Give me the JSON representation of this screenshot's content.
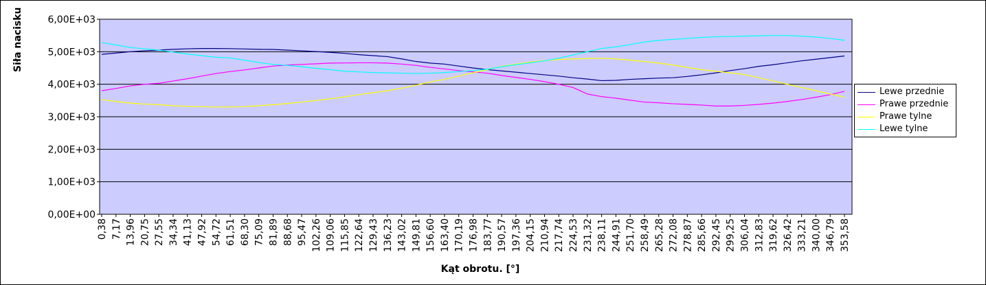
{
  "chart_data": {
    "type": "line",
    "y_label": "Siła nacisku",
    "x_label": "Kąt obrotu. [°]",
    "categories": [
      "0,38",
      "7,17",
      "13,96",
      "20,75",
      "27,55",
      "34,34",
      "41,13",
      "47,92",
      "54,72",
      "61,51",
      "68,30",
      "75,09",
      "81,89",
      "88,68",
      "95,47",
      "102,26",
      "109,06",
      "115,85",
      "122,64",
      "129,43",
      "136,23",
      "143,02",
      "149,81",
      "156,60",
      "163,40",
      "170,19",
      "176,98",
      "183,77",
      "190,57",
      "197,36",
      "204,15",
      "210,94",
      "217,74",
      "224,53",
      "231,32",
      "238,11",
      "244,91",
      "251,70",
      "258,49",
      "265,28",
      "272,08",
      "278,87",
      "285,66",
      "292,45",
      "299,25",
      "306,04",
      "312,83",
      "319,62",
      "326,42",
      "333,21",
      "340,00",
      "346,79",
      "353,58"
    ],
    "series": [
      {
        "name": "Lewe przednie",
        "color": "#000080",
        "values": [
          4920,
          4960,
          5000,
          5030,
          5050,
          5075,
          5090,
          5100,
          5100,
          5095,
          5085,
          5075,
          5070,
          5050,
          5030,
          5005,
          4980,
          4950,
          4910,
          4880,
          4850,
          4780,
          4700,
          4650,
          4620,
          4560,
          4500,
          4450,
          4410,
          4370,
          4330,
          4290,
          4250,
          4200,
          4160,
          4110,
          4120,
          4150,
          4170,
          4190,
          4200,
          4240,
          4290,
          4350,
          4420,
          4480,
          4550,
          4600,
          4660,
          4720,
          4770,
          4820,
          4870
        ]
      },
      {
        "name": "Prawe przednie",
        "color": "#ff00ff",
        "values": [
          3800,
          3870,
          3950,
          4000,
          4030,
          4100,
          4170,
          4250,
          4330,
          4390,
          4440,
          4500,
          4560,
          4590,
          4610,
          4630,
          4650,
          4655,
          4660,
          4660,
          4650,
          4620,
          4580,
          4520,
          4470,
          4420,
          4380,
          4340,
          4270,
          4210,
          4150,
          4080,
          4000,
          3900,
          3700,
          3620,
          3570,
          3510,
          3450,
          3430,
          3400,
          3380,
          3360,
          3330,
          3330,
          3350,
          3380,
          3420,
          3470,
          3530,
          3600,
          3680,
          3780
        ]
      },
      {
        "name": "Prawe tylne",
        "color": "#ffff00",
        "values": [
          3530,
          3470,
          3420,
          3390,
          3370,
          3340,
          3320,
          3310,
          3300,
          3300,
          3310,
          3340,
          3370,
          3410,
          3450,
          3500,
          3550,
          3610,
          3680,
          3740,
          3800,
          3880,
          3970,
          4070,
          4150,
          4250,
          4350,
          4450,
          4550,
          4620,
          4680,
          4730,
          4760,
          4780,
          4790,
          4800,
          4780,
          4740,
          4700,
          4650,
          4590,
          4520,
          4450,
          4400,
          4350,
          4300,
          4200,
          4100,
          4000,
          3900,
          3800,
          3700,
          3600
        ]
      },
      {
        "name": "Lewe tylne",
        "color": "#00ffff",
        "values": [
          5280,
          5210,
          5130,
          5090,
          5050,
          4990,
          4930,
          4880,
          4830,
          4810,
          4740,
          4670,
          4610,
          4580,
          4540,
          4490,
          4450,
          4400,
          4380,
          4360,
          4350,
          4340,
          4330,
          4340,
          4360,
          4390,
          4420,
          4460,
          4540,
          4600,
          4660,
          4720,
          4800,
          4900,
          5000,
          5100,
          5150,
          5220,
          5300,
          5350,
          5380,
          5410,
          5440,
          5460,
          5470,
          5480,
          5490,
          5500,
          5500,
          5480,
          5450,
          5410,
          5350
        ]
      }
    ],
    "ylim": [
      0,
      6000
    ],
    "yticks": [
      {
        "value": 0,
        "label": "0,00E+00"
      },
      {
        "value": 1000,
        "label": "1,00E+03"
      },
      {
        "value": 2000,
        "label": "2,00E+03"
      },
      {
        "value": 3000,
        "label": "3,00E+03"
      },
      {
        "value": 4000,
        "label": "4,00E+03"
      },
      {
        "value": 5000,
        "label": "5,00E+03"
      },
      {
        "value": 6000,
        "label": "6,00E+03"
      }
    ],
    "grid": true,
    "plot_background": "#ccccff",
    "legend": "right"
  }
}
